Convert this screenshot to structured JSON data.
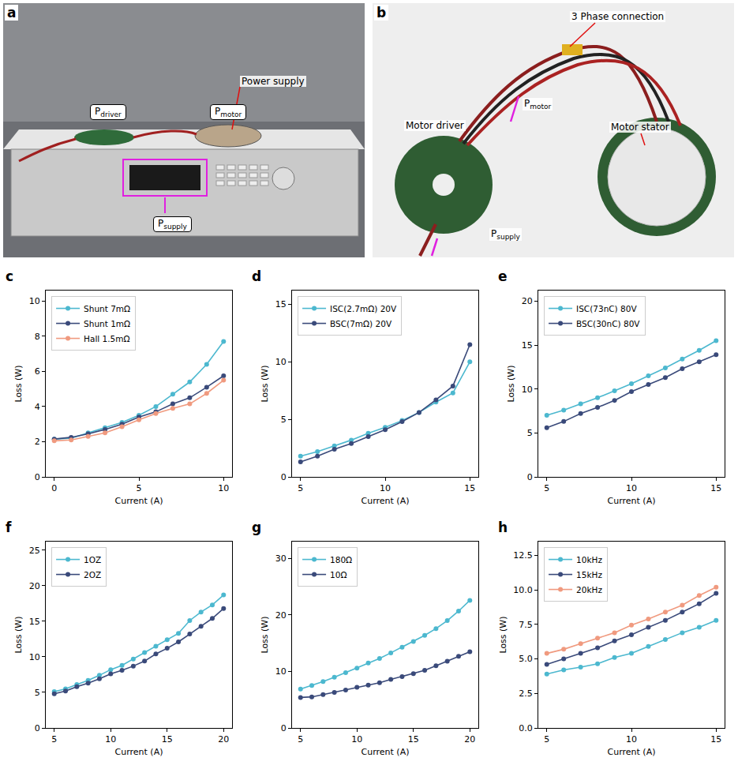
{
  "photos": [
    {
      "panel": "a",
      "labels": [
        {
          "text": "P",
          "sub": "driver"
        },
        {
          "text": "P",
          "sub": "motor"
        },
        {
          "text": "Power supply"
        },
        {
          "text": "P",
          "sub": "supply"
        }
      ]
    },
    {
      "panel": "b",
      "labels": [
        {
          "text": "3 Phase connection"
        },
        {
          "text": "Motor driver"
        },
        {
          "text": "P",
          "sub": "motor"
        },
        {
          "text": "Motor stator"
        },
        {
          "text": "P",
          "sub": "supply"
        }
      ]
    }
  ],
  "chart_data": [
    {
      "panel": "c",
      "type": "line",
      "marker": "circle",
      "xlabel": "Current (A)",
      "ylabel": "Loss (W)",
      "legend": "upper left",
      "grid": false,
      "xlim": [
        -0.5,
        10.5
      ],
      "xticks": [
        0,
        5,
        10
      ],
      "ylim": [
        0,
        10.6
      ],
      "yticks": [
        0,
        2,
        4,
        6,
        8,
        10
      ],
      "x": [
        0,
        1,
        2,
        3,
        4,
        5,
        6,
        7,
        8,
        9,
        10
      ],
      "series": [
        {
          "name": "Shunt 7mΩ",
          "color": "#4cb8cf",
          "values": [
            2.15,
            2.2,
            2.5,
            2.8,
            3.1,
            3.5,
            4.0,
            4.7,
            5.4,
            6.4,
            7.7
          ]
        },
        {
          "name": "Shunt 1mΩ",
          "color": "#3a4a7a",
          "values": [
            2.15,
            2.25,
            2.45,
            2.7,
            3.0,
            3.4,
            3.7,
            4.15,
            4.5,
            5.1,
            5.75
          ]
        },
        {
          "name": "Hall 1.5mΩ",
          "color": "#f09a7f",
          "values": [
            2.05,
            2.1,
            2.3,
            2.5,
            2.85,
            3.25,
            3.6,
            3.9,
            4.15,
            4.75,
            5.5
          ]
        }
      ]
    },
    {
      "panel": "d",
      "type": "line",
      "marker": "circle",
      "xlabel": "Current (A)",
      "ylabel": "Loss (W)",
      "legend": "upper left",
      "grid": false,
      "xlim": [
        4.5,
        15.5
      ],
      "xticks": [
        5,
        10,
        15
      ],
      "ylim": [
        0,
        16.2
      ],
      "yticks": [
        0,
        5,
        10,
        15
      ],
      "x": [
        5,
        6,
        7,
        8,
        9,
        10,
        11,
        12,
        13,
        14,
        15
      ],
      "series": [
        {
          "name": "ISC(2.7mΩ) 20V",
          "color": "#4cb8cf",
          "values": [
            1.8,
            2.2,
            2.7,
            3.2,
            3.8,
            4.3,
            4.9,
            5.6,
            6.5,
            7.3,
            10.0
          ]
        },
        {
          "name": "BSC(7mΩ) 20V",
          "color": "#3a4a7a",
          "values": [
            1.3,
            1.8,
            2.4,
            2.9,
            3.5,
            4.1,
            4.8,
            5.6,
            6.7,
            7.9,
            11.5
          ]
        }
      ]
    },
    {
      "panel": "e",
      "type": "line",
      "marker": "circle",
      "xlabel": "Current (A)",
      "ylabel": "Loss (W)",
      "legend": "upper left",
      "grid": false,
      "xlim": [
        4.5,
        15.5
      ],
      "xticks": [
        5,
        10,
        15
      ],
      "ylim": [
        0,
        21.2
      ],
      "yticks": [
        0,
        5,
        10,
        15,
        20
      ],
      "x": [
        5,
        6,
        7,
        8,
        9,
        10,
        11,
        12,
        13,
        14,
        15
      ],
      "series": [
        {
          "name": "ISC(73nC) 80V",
          "color": "#4cb8cf",
          "values": [
            7.0,
            7.6,
            8.3,
            9.0,
            9.8,
            10.6,
            11.5,
            12.4,
            13.4,
            14.4,
            15.5
          ]
        },
        {
          "name": "BSC(30nC) 80V",
          "color": "#3a4a7a",
          "values": [
            5.6,
            6.3,
            7.2,
            7.9,
            8.7,
            9.7,
            10.5,
            11.3,
            12.3,
            13.1,
            13.9
          ]
        }
      ]
    },
    {
      "panel": "f",
      "type": "line",
      "marker": "circle",
      "xlabel": "Current (A)",
      "ylabel": "Loss (W)",
      "legend": "upper left",
      "grid": false,
      "xlim": [
        4.25,
        20.75
      ],
      "xticks": [
        5,
        10,
        15,
        20
      ],
      "ylim": [
        0,
        26.2
      ],
      "yticks": [
        0,
        5,
        10,
        15,
        20,
        25
      ],
      "x": [
        5,
        6,
        7,
        8,
        9,
        10,
        11,
        12,
        13,
        14,
        15,
        16,
        17,
        18,
        19,
        20
      ],
      "series": [
        {
          "name": "1OZ",
          "color": "#4cb8cf",
          "values": [
            5.1,
            5.5,
            6.1,
            6.7,
            7.4,
            8.2,
            8.8,
            9.7,
            10.6,
            11.5,
            12.4,
            13.3,
            15.1,
            16.3,
            17.3,
            18.7
          ]
        },
        {
          "name": "2OZ",
          "color": "#3a4a7a",
          "values": [
            4.8,
            5.2,
            5.8,
            6.3,
            6.9,
            7.6,
            8.1,
            8.7,
            9.4,
            10.4,
            11.2,
            12.1,
            13.2,
            14.3,
            15.4,
            16.8
          ]
        }
      ]
    },
    {
      "panel": "g",
      "type": "line",
      "marker": "circle",
      "xlabel": "Current (A)",
      "ylabel": "Loss (W)",
      "legend": "upper left",
      "grid": false,
      "xlim": [
        4.25,
        20.75
      ],
      "xticks": [
        5,
        10,
        15,
        20
      ],
      "ylim": [
        0,
        33
      ],
      "yticks": [
        0,
        10,
        20,
        30
      ],
      "x": [
        5,
        6,
        7,
        8,
        9,
        10,
        11,
        12,
        13,
        14,
        15,
        16,
        17,
        18,
        19,
        20
      ],
      "series": [
        {
          "name": "180Ω",
          "color": "#4cb8cf",
          "values": [
            6.9,
            7.5,
            8.2,
            9.0,
            9.8,
            10.6,
            11.5,
            12.3,
            13.3,
            14.3,
            15.3,
            16.4,
            17.6,
            19.0,
            20.7,
            22.6
          ]
        },
        {
          "name": "10Ω",
          "color": "#3a4a7a",
          "values": [
            5.4,
            5.5,
            5.9,
            6.3,
            6.7,
            7.2,
            7.6,
            8.0,
            8.6,
            9.1,
            9.6,
            10.2,
            11.0,
            11.8,
            12.7,
            13.5
          ]
        }
      ]
    },
    {
      "panel": "h",
      "type": "line",
      "marker": "circle",
      "xlabel": "Current (A)",
      "ylabel": "Loss (W)",
      "legend": "upper left",
      "grid": false,
      "xlim": [
        4.5,
        15.5
      ],
      "xticks": [
        5,
        10,
        15
      ],
      "ylim": [
        0,
        13.5
      ],
      "yticks": [
        {
          "value": 0,
          "label": "0.0"
        },
        2.5,
        {
          "value": 5,
          "label": "5.0"
        },
        7.5,
        {
          "value": 10,
          "label": "10.0"
        },
        12.5
      ],
      "x": [
        5,
        6,
        7,
        8,
        9,
        10,
        11,
        12,
        13,
        14,
        15
      ],
      "series": [
        {
          "name": "10kHz",
          "color": "#4cb8cf",
          "values": [
            3.9,
            4.2,
            4.4,
            4.65,
            5.1,
            5.4,
            5.9,
            6.4,
            6.9,
            7.3,
            7.8
          ]
        },
        {
          "name": "15kHz",
          "color": "#3a4a7a",
          "values": [
            4.6,
            5.0,
            5.4,
            5.8,
            6.3,
            6.75,
            7.3,
            7.8,
            8.4,
            9.0,
            9.75
          ]
        },
        {
          "name": "20kHz",
          "color": "#f09a7f",
          "values": [
            5.4,
            5.7,
            6.1,
            6.5,
            6.9,
            7.45,
            7.9,
            8.4,
            8.9,
            9.6,
            10.2
          ]
        }
      ]
    }
  ]
}
